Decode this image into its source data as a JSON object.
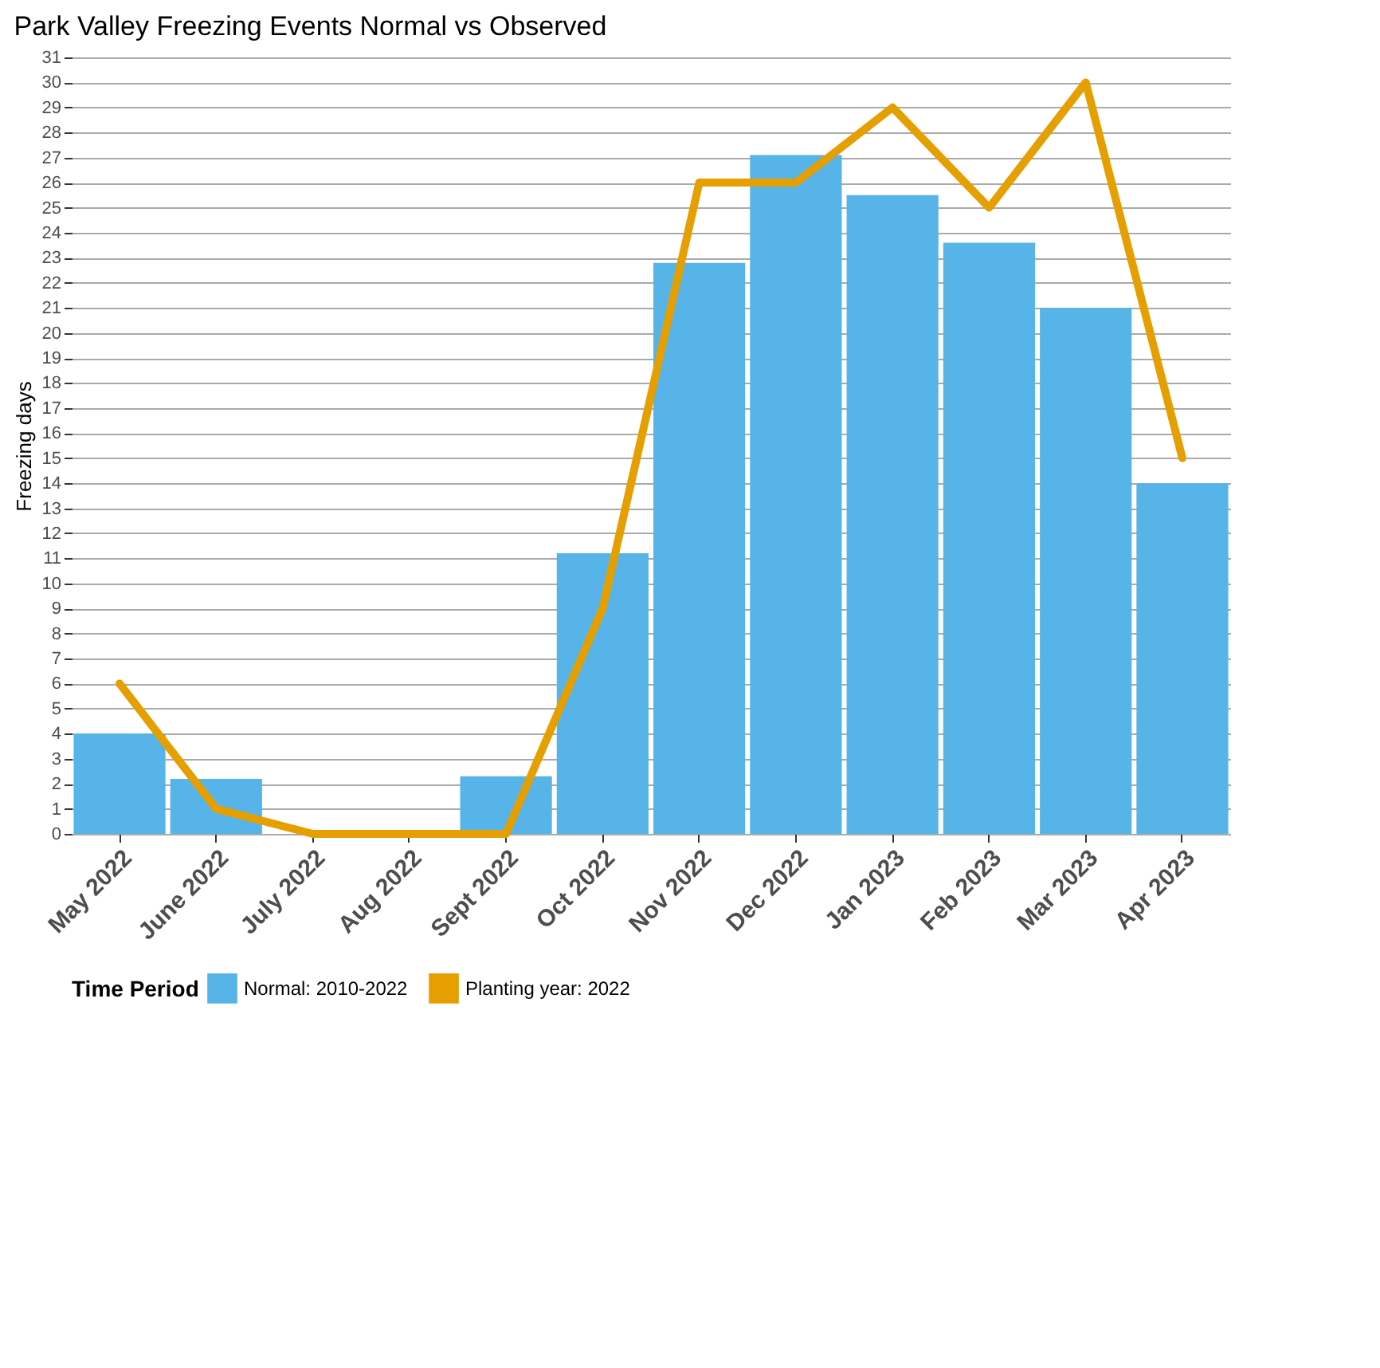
{
  "chart_data": {
    "type": "bar",
    "title": "Park Valley Freezing Events Normal vs Observed",
    "ylabel": "Freezing days",
    "legend_title": "Time Period",
    "categories": [
      "May 2022",
      "June 2022",
      "July 2022",
      "Aug 2022",
      "Sept 2022",
      "Oct 2022",
      "Nov 2022",
      "Dec 2022",
      "Jan 2023",
      "Feb 2023",
      "Mar 2023",
      "Apr 2023"
    ],
    "series": [
      {
        "name": "Normal: 2010-2022",
        "color": "#56b4e9",
        "values": [
          4,
          2.2,
          0,
          0,
          2.3,
          11.2,
          22.8,
          27.1,
          25.5,
          23.6,
          21.0,
          14.0
        ]
      },
      {
        "name": "Planting year: 2022",
        "type": "line",
        "color": "#e69f00",
        "values": [
          6,
          1,
          0,
          0,
          0,
          9,
          26,
          26,
          29,
          25,
          30,
          15
        ]
      }
    ],
    "ylim": [
      0,
      31
    ],
    "yticks": [
      0,
      1,
      2,
      3,
      4,
      5,
      6,
      7,
      8,
      9,
      10,
      11,
      12,
      13,
      14,
      15,
      16,
      17,
      18,
      19,
      20,
      21,
      22,
      23,
      24,
      25,
      26,
      27,
      28,
      29,
      30,
      31
    ],
    "grid": "y",
    "legend": "bottom"
  }
}
